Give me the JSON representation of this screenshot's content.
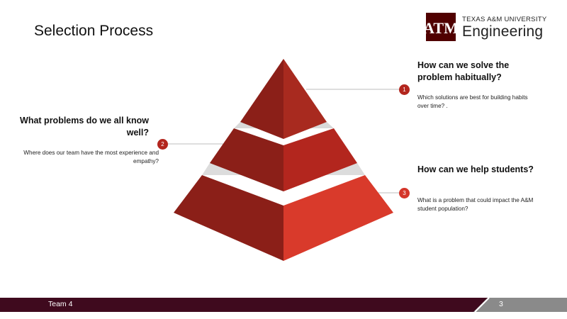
{
  "slide": {
    "title": "Selection Process",
    "logo_text": "ATM",
    "university": "TEXAS A&M UNIVERSITY",
    "college": "Engineering"
  },
  "items": [
    {
      "number": "1",
      "heading": "How can we solve the problem habitually?",
      "description": "Which solutions are best for building habits over time? ."
    },
    {
      "number": "2",
      "heading": "What problems do we all know well?",
      "description": "Where does our team have the most experience and empathy?"
    },
    {
      "number": "3",
      "heading": "How can we help students?",
      "description": "What is a problem that could impact the A&M student population?"
    }
  ],
  "footer": {
    "team": "Team 4",
    "page_number": "3"
  },
  "colors": {
    "maroon": "#500000",
    "footer_maroon": "#3f0a1e",
    "red_dark": "#8b1f18",
    "red_mid": "#b3261e",
    "red_bright": "#d93a2b",
    "gap_gray": "#d9d9d9",
    "footer_gray": "#8a8a8a"
  }
}
